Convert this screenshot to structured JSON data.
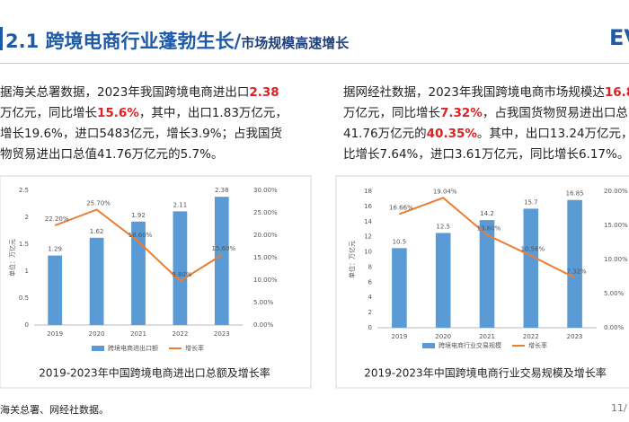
{
  "header": {
    "title": "2.1 跨境电商行业蓬勃生长/",
    "subtitle": "市场规模高速增长",
    "logo": "EV"
  },
  "paragraphs": [
    {
      "lines": [
        [
          {
            "text": "据海关总署数据，2023年我国跨境电商进出口"
          },
          {
            "text": "2.38",
            "highlight": true
          }
        ],
        [
          {
            "text": "万亿元，同比增长"
          },
          {
            "text": "15.6%",
            "highlight": true
          },
          {
            "text": "，其中，出口1.83万亿元，"
          }
        ],
        [
          {
            "text": "增长19.6%，进口5483亿元，增长3.9%；占我国货"
          }
        ],
        [
          {
            "text": "物贸易进出口总值41.76万亿元的5.7%。"
          }
        ]
      ]
    },
    {
      "lines": [
        [
          {
            "text": "据网经社数据，2023年我国跨境电商市场规模达"
          },
          {
            "text": "16.8",
            "highlight": true
          }
        ],
        [
          {
            "text": "万亿元，同比增长"
          },
          {
            "text": "7.32%",
            "highlight": true
          },
          {
            "text": "，占我国货物贸易进出口总"
          }
        ],
        [
          {
            "text": "41.76万亿元的"
          },
          {
            "text": "40.35%",
            "highlight": true
          },
          {
            "text": "。其中，出口13.24万亿元，同"
          }
        ],
        [
          {
            "text": "比增长7.64%，进口3.61万亿元，同比增长6.17%。"
          }
        ]
      ]
    }
  ],
  "chart_data": [
    {
      "type": "bar-line",
      "title": "2019-2023年中国跨境电商进出口总额及增长率",
      "ylabel": "单位：万亿元",
      "categories": [
        "2019",
        "2020",
        "2021",
        "2022",
        "2023"
      ],
      "ylim": [
        0,
        2.5
      ],
      "yticks": [
        0,
        0.5,
        1,
        1.5,
        2,
        2.5
      ],
      "y2lim": [
        0,
        30
      ],
      "y2ticks": [
        {
          "value": 0,
          "label": "0.00%"
        },
        {
          "value": 5,
          "label": "5.00%"
        },
        {
          "value": 10,
          "label": "10.00%"
        },
        {
          "value": 15,
          "label": "15.00%"
        },
        {
          "value": 20,
          "label": "20.00%"
        },
        {
          "value": 25,
          "label": "25.00%"
        },
        {
          "value": 30,
          "label": "30.00%"
        }
      ],
      "legend": "bottom",
      "grid": false,
      "series": [
        {
          "name": "跨境电商进出口额",
          "color": "#5b9bd5",
          "values": [
            1.29,
            1.62,
            1.92,
            2.11,
            2.38
          ]
        },
        {
          "name": "增长率",
          "color": "#ed7d31",
          "axis": "y2",
          "values": [
            22.2,
            25.7,
            18.6,
            9.8,
            15.6
          ],
          "value_labels": [
            "22.20%",
            "25.70%",
            "18.60%",
            "9.80%",
            "15.60%"
          ]
        }
      ]
    },
    {
      "type": "bar-line",
      "title": "2019-2023年中国跨境电商行业交易规模及增长率",
      "ylabel": "单位：万亿元",
      "categories": [
        "2019",
        "2020",
        "2021",
        "2022",
        "2023"
      ],
      "ylim": [
        0,
        18
      ],
      "yticks": [
        0,
        2,
        4,
        6,
        8,
        10,
        12,
        14,
        16,
        18
      ],
      "y2lim": [
        0,
        20
      ],
      "y2ticks": [
        {
          "value": 0,
          "label": "0.00%"
        },
        {
          "value": 5,
          "label": "5.00%"
        },
        {
          "value": 10,
          "label": "10.00%"
        },
        {
          "value": 15,
          "label": "15.00%"
        },
        {
          "value": 20,
          "label": "20.00%"
        }
      ],
      "legend": "bottom",
      "grid": false,
      "series": [
        {
          "name": "跨境电商行业交易规模",
          "color": "#5b9bd5",
          "values": [
            10.5,
            12.5,
            14.2,
            15.7,
            16.85
          ]
        },
        {
          "name": "增长率",
          "color": "#ed7d31",
          "axis": "y2",
          "values": [
            16.66,
            19.04,
            13.6,
            10.56,
            7.32
          ],
          "value_labels": [
            "16.66%",
            "19.04%",
            "13.60%",
            "10.56%",
            "7.32%"
          ]
        }
      ]
    }
  ],
  "footer": {
    "source": "海关总署、网经社数据。",
    "page": "11/"
  }
}
